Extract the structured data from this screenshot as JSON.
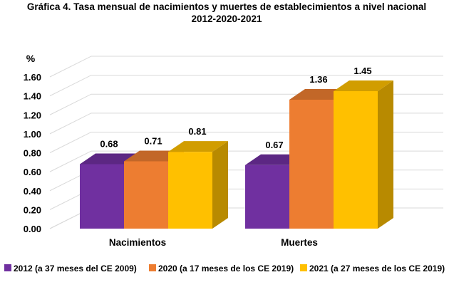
{
  "chart_data": {
    "type": "bar",
    "title_line1": "Gráfica 4. Tasa mensual de nacimientos y muertes de establecimientos a nivel nacional",
    "title_line2": "2012-2020-2021",
    "ylabel": "%",
    "ylim": [
      0,
      1.6
    ],
    "yticks": [
      "0.00",
      "0.20",
      "0.40",
      "0.60",
      "0.80",
      "1.00",
      "1.20",
      "1.40",
      "1.60"
    ],
    "categories": [
      "Nacimientos",
      "Muertes"
    ],
    "series": [
      {
        "name": "2012 (a 37 meses del CE 2009)",
        "values": [
          0.68,
          0.67
        ],
        "labels": [
          "0.68",
          "0.67"
        ],
        "color": "#7030A0"
      },
      {
        "name": "2020 (a 17 meses de los CE 2019)",
        "values": [
          0.71,
          1.36
        ],
        "labels": [
          "0.71",
          "1.36"
        ],
        "color": "#ED7D31"
      },
      {
        "name": "2021 (a 27 meses de los CE 2019)",
        "values": [
          0.81,
          1.45
        ],
        "labels": [
          "0.81",
          "1.45"
        ],
        "color": "#FFC000"
      }
    ],
    "grid": true,
    "legend_position": "bottom"
  }
}
